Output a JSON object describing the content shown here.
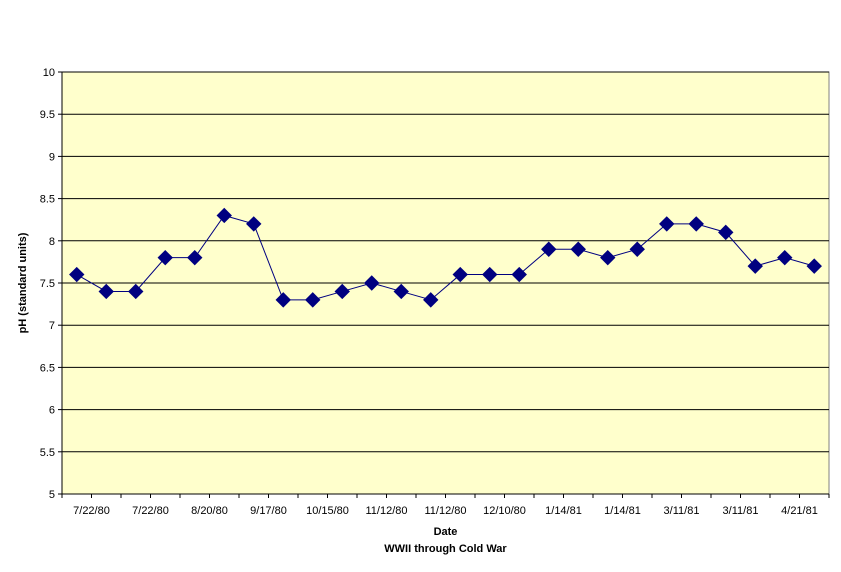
{
  "chart_data": {
    "type": "line",
    "title": "",
    "xlabel": "Date",
    "xlabel_sub": "WWII through Cold War",
    "ylabel": "pH (standard units)",
    "ylim": [
      5,
      10
    ],
    "yticks": [
      "5",
      "5.5",
      "6",
      "6.5",
      "7",
      "7.5",
      "8",
      "8.5",
      "9",
      "9.5",
      "10"
    ],
    "grid": true,
    "legend": "none",
    "plot_background": "#FFFFCC",
    "series_color": "#000080",
    "marker": "diamond",
    "x_tick_labels": [
      "7/22/80",
      "7/22/80",
      "8/20/80",
      "9/17/80",
      "10/15/80",
      "11/12/80",
      "11/12/80",
      "12/10/80",
      "1/14/81",
      "1/14/81",
      "3/11/81",
      "3/11/81",
      "4/21/81"
    ],
    "series": [
      {
        "values": [
          7.6,
          7.4,
          7.4,
          7.8,
          7.8,
          8.3,
          8.2,
          7.3,
          7.3,
          7.4,
          7.5,
          7.4,
          7.3,
          7.6,
          7.6,
          7.6,
          7.9,
          7.9,
          7.8,
          7.9,
          8.2,
          8.2,
          8.1,
          7.7,
          7.8,
          7.7
        ]
      }
    ]
  }
}
